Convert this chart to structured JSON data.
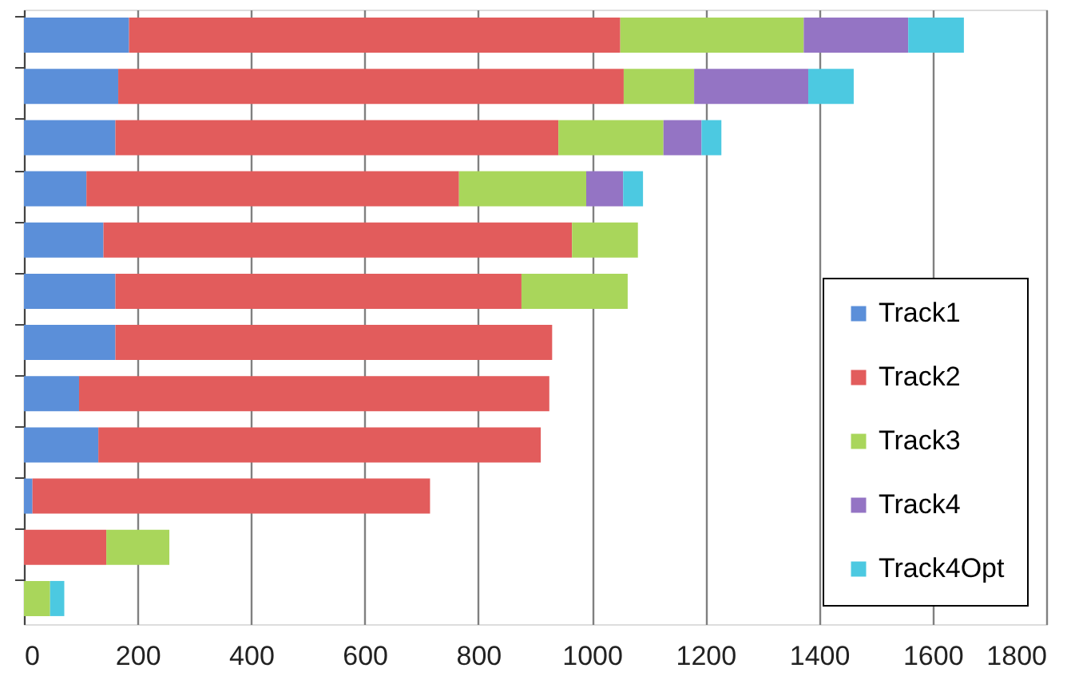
{
  "chart_data": {
    "type": "bar",
    "orientation": "horizontal",
    "stacked": true,
    "categories": [
      null,
      null,
      null,
      null,
      null,
      null,
      null,
      null,
      null,
      null,
      null,
      null
    ],
    "series": [
      {
        "name": "Track1",
        "color": "#5b8fd9",
        "values": [
          185,
          166,
          161,
          110,
          140,
          161,
          161,
          97,
          131,
          15,
          null,
          null
        ]
      },
      {
        "name": "Track2",
        "color": "#e25c5c",
        "values": [
          865,
          890,
          780,
          656,
          825,
          715,
          769,
          828,
          779,
          700,
          145,
          null
        ]
      },
      {
        "name": "Track3",
        "color": "#a9d65b",
        "values": [
          323,
          124,
          185,
          224,
          116,
          187,
          null,
          null,
          null,
          null,
          111,
          46
        ]
      },
      {
        "name": "Track4",
        "color": "#9474c4",
        "values": [
          184,
          201,
          67,
          65,
          null,
          null,
          null,
          null,
          null,
          null,
          null,
          null
        ]
      },
      {
        "name": "Track4Opt",
        "color": "#4cc9e1",
        "values": [
          98,
          80,
          35,
          35,
          null,
          null,
          null,
          null,
          null,
          null,
          null,
          25
        ]
      }
    ],
    "xlim": [
      0,
      1800
    ],
    "xticks": [
      0,
      200,
      400,
      600,
      800,
      1000,
      1200,
      1400,
      1600,
      1800
    ],
    "grid": "x",
    "legend": "bottom right",
    "tick_labels": "x"
  }
}
